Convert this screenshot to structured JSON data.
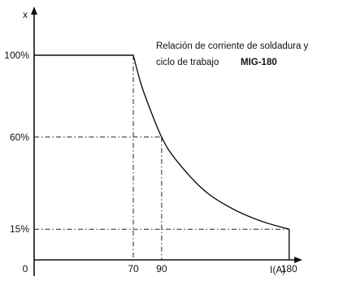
{
  "chart_data": {
    "type": "line",
    "title_lines": [
      "Relación de corriente de soldadura y",
      "ciclo de trabajo"
    ],
    "title_model": "MIG-180",
    "xlabel": "I(A)",
    "ylabel": "x",
    "origin_label": "0",
    "xlim": [
      0,
      200
    ],
    "x_ticks": [
      70,
      90,
      180
    ],
    "y_ticks": [
      {
        "value": 100,
        "label": "100%"
      },
      {
        "value": 60,
        "label": "60%"
      },
      {
        "value": 15,
        "label": "15%"
      }
    ],
    "series": [
      {
        "x": [
          0,
          70,
          75,
          80,
          90,
          100,
          120,
          140,
          160,
          180
        ],
        "y": [
          100,
          100,
          87,
          77,
          60,
          49,
          34,
          25,
          19,
          15
        ]
      }
    ],
    "reference_points": [
      {
        "x": 70,
        "y": 100
      },
      {
        "x": 90,
        "y": 60
      },
      {
        "x": 180,
        "y": 15
      }
    ],
    "end_drop": {
      "x": 180,
      "from": 15,
      "to": 0
    },
    "grid": false
  }
}
